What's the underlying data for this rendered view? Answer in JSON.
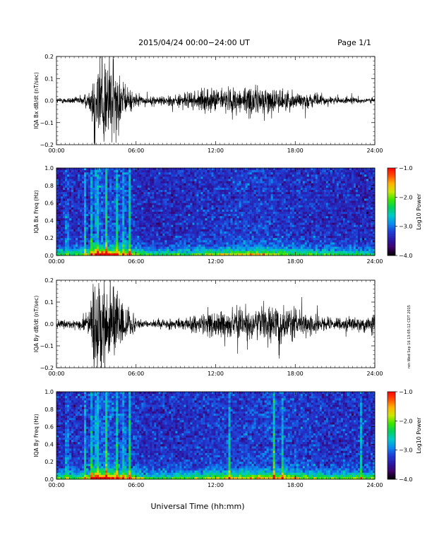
{
  "header": {
    "title": "2015/04/24  00:00−24:00 UT",
    "page": "Page 1/1"
  },
  "footer": {
    "xlabel": "Universal Time (hh:mm)",
    "stamp": "ren Wed Sep 16 13:05:12 CDT 2015"
  },
  "chart_data": [
    {
      "type": "line",
      "title": "",
      "ylabel": "IQA Bx dB/dt (nT/sec)",
      "xlabel": "",
      "x_ticks": [
        "00:00",
        "06:00",
        "12:00",
        "18:00",
        "24:00"
      ],
      "xlim": [
        0,
        24
      ],
      "ylim": [
        -0.2,
        0.2
      ],
      "y_ticks": [
        "0.2",
        "0.1",
        "0.0",
        "−0.1",
        "−0.2"
      ],
      "series": [
        {
          "values": [
            {
              "x": 0,
              "amp": 0.015
            },
            {
              "x": 1.5,
              "amp": 0.02
            },
            {
              "x": 2.5,
              "amp": 0.05
            },
            {
              "x": 2.9,
              "amp": 0.3
            },
            {
              "x": 3.5,
              "amp": 0.3
            },
            {
              "x": 4.3,
              "amp": 0.25
            },
            {
              "x": 5.2,
              "amp": 0.08
            },
            {
              "x": 6.5,
              "amp": 0.02
            },
            {
              "x": 9,
              "amp": 0.035
            },
            {
              "x": 11,
              "amp": 0.06
            },
            {
              "x": 14,
              "amp": 0.08
            },
            {
              "x": 15.5,
              "amp": 0.085
            },
            {
              "x": 17,
              "amp": 0.06
            },
            {
              "x": 19,
              "amp": 0.04
            },
            {
              "x": 21,
              "amp": 0.02
            },
            {
              "x": 24,
              "amp": 0.015
            }
          ]
        }
      ],
      "line_color": "#000000"
    },
    {
      "type": "heatmap",
      "title": "",
      "ylabel": "IQA Bx Freq (Hz)",
      "xlabel": "",
      "x_ticks": [
        "00:00",
        "06:00",
        "12:00",
        "18:00",
        "24:00"
      ],
      "xlim": [
        0,
        24
      ],
      "ylim": [
        0.0,
        1.0
      ],
      "y_ticks": [
        "1.0",
        "0.8",
        "0.6",
        "0.4",
        "0.2",
        "0.0"
      ],
      "colorbar": {
        "label": "Log10 Power",
        "range": [
          -4.0,
          -1.0
        ],
        "ticks": [
          "−1.0",
          "−2.0",
          "−3.0",
          "−4.0"
        ],
        "colors": [
          "#000000",
          "#3c0066",
          "#2a1aa8",
          "#1f3fd6",
          "#0a8cf0",
          "#00c8c8",
          "#00d060",
          "#3ce600",
          "#c8e600",
          "#ffb400",
          "#ff5000",
          "#ff0000"
        ]
      },
      "activity": [
        {
          "x": 0,
          "level": 0.1
        },
        {
          "x": 1,
          "level": 0.12
        },
        {
          "x": 2.5,
          "level": 0.25
        },
        {
          "x": 3.0,
          "level": 0.75
        },
        {
          "x": 3.6,
          "level": 0.7
        },
        {
          "x": 4.5,
          "level": 0.5
        },
        {
          "x": 5.5,
          "level": 0.35
        },
        {
          "x": 7,
          "level": 0.1
        },
        {
          "x": 10,
          "level": 0.18
        },
        {
          "x": 13,
          "level": 0.3
        },
        {
          "x": 15.5,
          "level": 0.38
        },
        {
          "x": 18,
          "level": 0.25
        },
        {
          "x": 21,
          "level": 0.15
        },
        {
          "x": 24,
          "level": 0.08
        }
      ],
      "vertical_streaks": [
        0.8,
        2.2,
        2.6,
        3.05,
        3.75,
        4.6,
        5.1,
        5.5
      ]
    },
    {
      "type": "line",
      "title": "",
      "ylabel": "IQA By dB/dt (nT/sec)",
      "xlabel": "",
      "x_ticks": [
        "00:00",
        "06:00",
        "12:00",
        "18:00",
        "24:00"
      ],
      "xlim": [
        0,
        24
      ],
      "ylim": [
        -0.2,
        0.2
      ],
      "y_ticks": [
        "0.2",
        "0.1",
        "0.0",
        "−0.1",
        "−0.2"
      ],
      "series": [
        {
          "values": [
            {
              "x": 0,
              "amp": 0.025
            },
            {
              "x": 1.5,
              "amp": 0.03
            },
            {
              "x": 2.5,
              "amp": 0.06
            },
            {
              "x": 2.9,
              "amp": 0.3
            },
            {
              "x": 3.5,
              "amp": 0.3
            },
            {
              "x": 4.3,
              "amp": 0.25
            },
            {
              "x": 5.2,
              "amp": 0.1
            },
            {
              "x": 6.5,
              "amp": 0.02
            },
            {
              "x": 9,
              "amp": 0.03
            },
            {
              "x": 11,
              "amp": 0.06
            },
            {
              "x": 13,
              "amp": 0.08
            },
            {
              "x": 15.5,
              "amp": 0.085
            },
            {
              "x": 17,
              "amp": 0.1
            },
            {
              "x": 19,
              "amp": 0.06
            },
            {
              "x": 21,
              "amp": 0.035
            },
            {
              "x": 23,
              "amp": 0.04
            },
            {
              "x": 24,
              "amp": 0.05
            }
          ]
        }
      ],
      "line_color": "#000000"
    },
    {
      "type": "heatmap",
      "title": "",
      "ylabel": "IQA By Freq (Hz)",
      "xlabel": "",
      "x_ticks": [
        "00:00",
        "06:00",
        "12:00",
        "18:00",
        "24:00"
      ],
      "xlim": [
        0,
        24
      ],
      "ylim": [
        0.0,
        1.0
      ],
      "y_ticks": [
        "1.0",
        "0.8",
        "0.6",
        "0.4",
        "0.2",
        "0.0"
      ],
      "colorbar": {
        "label": "Log10 Power",
        "range": [
          -4.0,
          -1.0
        ],
        "ticks": [
          "−1.0",
          "−2.0",
          "−3.0",
          "−4.0"
        ],
        "colors": [
          "#000000",
          "#3c0066",
          "#2a1aa8",
          "#1f3fd6",
          "#0a8cf0",
          "#00c8c8",
          "#00d060",
          "#3ce600",
          "#c8e600",
          "#ffb400",
          "#ff5000",
          "#ff0000"
        ]
      },
      "activity": [
        {
          "x": 0,
          "level": 0.15
        },
        {
          "x": 1,
          "level": 0.18
        },
        {
          "x": 2.5,
          "level": 0.3
        },
        {
          "x": 3.0,
          "level": 0.8
        },
        {
          "x": 3.6,
          "level": 0.75
        },
        {
          "x": 4.5,
          "level": 0.55
        },
        {
          "x": 5.5,
          "level": 0.4
        },
        {
          "x": 7,
          "level": 0.15
        },
        {
          "x": 10,
          "level": 0.22
        },
        {
          "x": 13,
          "level": 0.35
        },
        {
          "x": 15.5,
          "level": 0.42
        },
        {
          "x": 17,
          "level": 0.45
        },
        {
          "x": 19,
          "level": 0.3
        },
        {
          "x": 21,
          "level": 0.2
        },
        {
          "x": 23,
          "level": 0.25
        },
        {
          "x": 24,
          "level": 0.2
        }
      ],
      "vertical_streaks": [
        0.8,
        2.2,
        2.6,
        3.05,
        3.75,
        4.6,
        5.1,
        5.5,
        13.0,
        16.4,
        17.0,
        23.0
      ]
    }
  ]
}
